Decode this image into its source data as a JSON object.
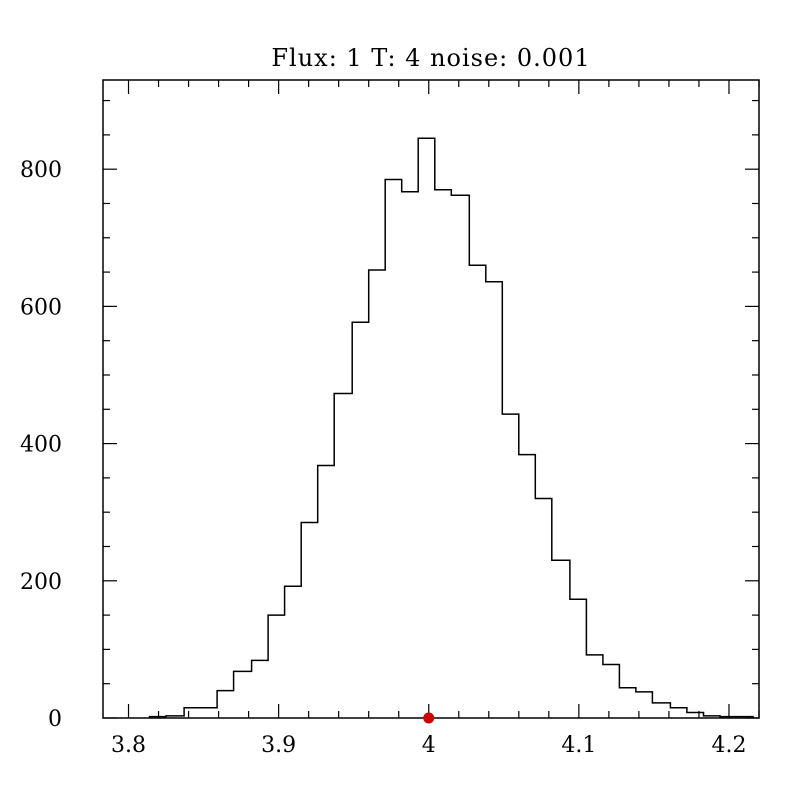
{
  "chart_data": {
    "type": "histogram",
    "title": "Flux: 1 T: 4 noise: 0.001",
    "xlabel": "",
    "ylabel": "",
    "xlim": [
      3.783,
      4.22
    ],
    "ylim": [
      0,
      930
    ],
    "x_ticks": [
      3.8,
      3.9,
      4.0,
      4.1,
      4.2
    ],
    "x_tick_labels": [
      "3.8",
      "3.9",
      "4",
      "4.1",
      "4.2"
    ],
    "y_ticks": [
      0,
      200,
      400,
      600,
      800
    ],
    "y_tick_labels": [
      "0",
      "200",
      "400",
      "600",
      "800"
    ],
    "bin_edges": [
      3.814,
      3.825,
      3.837,
      3.848,
      3.859,
      3.87,
      3.882,
      3.893,
      3.904,
      3.915,
      3.926,
      3.937,
      3.949,
      3.96,
      3.971,
      3.982,
      3.993,
      4.004,
      4.015,
      4.027,
      4.038,
      4.049,
      4.06,
      4.071,
      4.082,
      4.094,
      4.105,
      4.116,
      4.127,
      4.138,
      4.149,
      4.161,
      4.172,
      4.183,
      4.194,
      4.205,
      4.216
    ],
    "counts": [
      2,
      3,
      15,
      15,
      40,
      68,
      84,
      150,
      192,
      285,
      368,
      473,
      577,
      653,
      785,
      767,
      845,
      770,
      762,
      660,
      636,
      443,
      384,
      320,
      230,
      173,
      92,
      78,
      44,
      38,
      22,
      15,
      8,
      3,
      2,
      2
    ],
    "marker": {
      "x": 4.0,
      "y": 0,
      "color": "#cc0000"
    },
    "grid": false,
    "colors": {
      "line": "#000000",
      "marker": "#cc0000",
      "background": "#ffffff"
    }
  }
}
